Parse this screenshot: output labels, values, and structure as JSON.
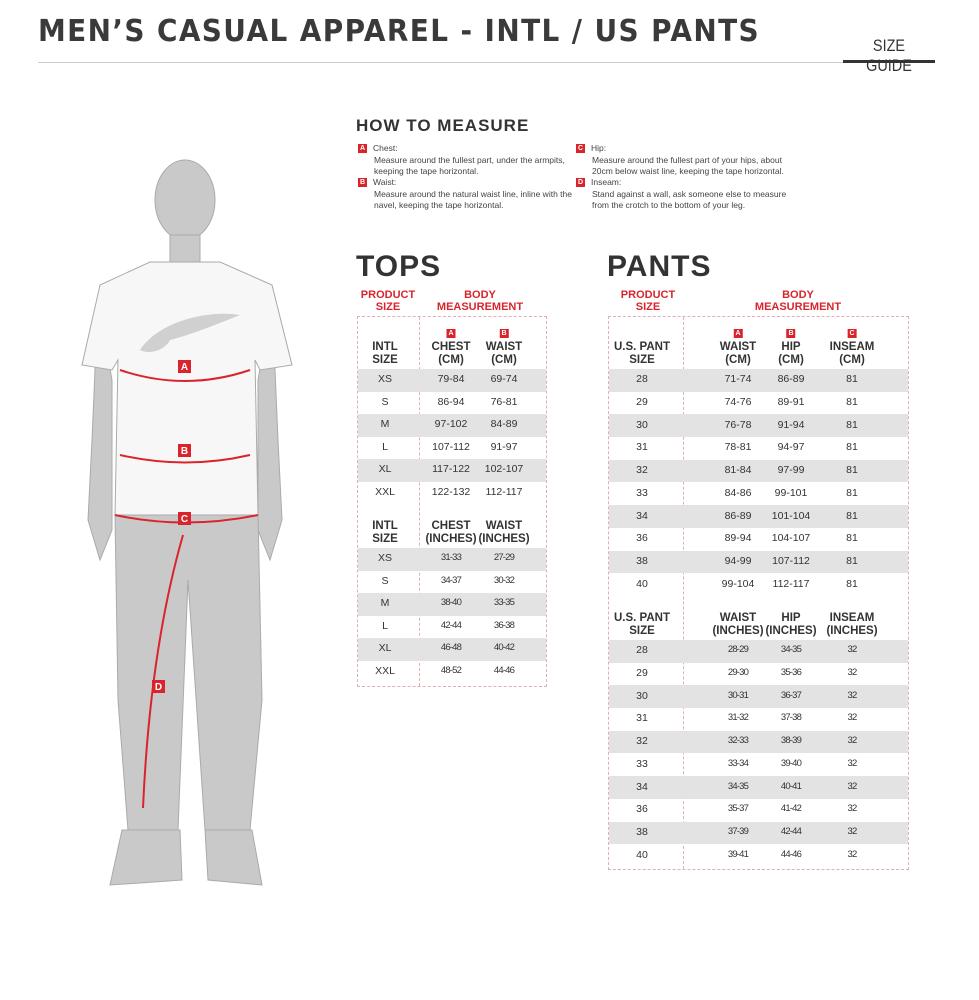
{
  "header": {
    "title": "MEN’S CASUAL APPAREL - INTL / US PANTS",
    "size_guide": "SIZE GUIDE"
  },
  "how_to_measure": {
    "title": "HOW TO MEASURE",
    "items": [
      {
        "badge": "A",
        "label": "Chest:",
        "text": "Measure around the fullest part, under the armpits, keeping the tape horizontal."
      },
      {
        "badge": "B",
        "label": "Waist:",
        "text": "Measure around the natural waist line, inline with the navel, keeping the tape horizontal."
      },
      {
        "badge": "C",
        "label": "Hip:",
        "text": "Measure around the fullest part of your hips, about 20cm below waist line, keeping the tape horizontal."
      },
      {
        "badge": "D",
        "label": "Inseam:",
        "text": "Stand against a wall, ask someone else to measure from the crotch to the bottom of your leg."
      }
    ]
  },
  "figure": {
    "labels": [
      "A",
      "B",
      "C",
      "D"
    ],
    "accent": "#d9242c"
  },
  "tops": {
    "title": "TOPS",
    "product_size": "PRODUCT SIZE",
    "body_measurement": "BODY MEASUREMENT",
    "sections": [
      {
        "headers": [
          {
            "badge": "",
            "label": "INTL SIZE"
          },
          {
            "badge": "A",
            "label": "CHEST (CM)"
          },
          {
            "badge": "B",
            "label": "WAIST (CM)"
          }
        ],
        "rows": [
          [
            "XS",
            "79-84",
            "69-74"
          ],
          [
            "S",
            "86-94",
            "76-81"
          ],
          [
            "M",
            "97-102",
            "84-89"
          ],
          [
            "L",
            "107-112",
            "91-97"
          ],
          [
            "XL",
            "117-122",
            "102-107"
          ],
          [
            "XXL",
            "122-132",
            "112-117"
          ]
        ]
      },
      {
        "headers": [
          {
            "badge": "",
            "label": "INTL SIZE"
          },
          {
            "badge": "",
            "label": "CHEST (INCHES)"
          },
          {
            "badge": "",
            "label": "WAIST (INCHES)"
          }
        ],
        "rows": [
          [
            "XS",
            "31-33",
            "27-29"
          ],
          [
            "S",
            "34-37",
            "30-32"
          ],
          [
            "M",
            "38-40",
            "33-35"
          ],
          [
            "L",
            "42-44",
            "36-38"
          ],
          [
            "XL",
            "46-48",
            "40-42"
          ],
          [
            "XXL",
            "48-52",
            "44-46"
          ]
        ]
      }
    ]
  },
  "pants": {
    "title": "PANTS",
    "product_size": "PRODUCT SIZE",
    "body_measurement": "BODY MEASUREMENT",
    "sections": [
      {
        "headers": [
          {
            "badge": "",
            "label": "U.S. PANT SIZE"
          },
          {
            "badge": "A",
            "label": "WAIST (CM)"
          },
          {
            "badge": "B",
            "label": "HIP (CM)"
          },
          {
            "badge": "C",
            "label": "INSEAM (CM)"
          }
        ],
        "rows": [
          [
            "28",
            "71-74",
            "86-89",
            "81"
          ],
          [
            "29",
            "74-76",
            "89-91",
            "81"
          ],
          [
            "30",
            "76-78",
            "91-94",
            "81"
          ],
          [
            "31",
            "78-81",
            "94-97",
            "81"
          ],
          [
            "32",
            "81-84",
            "97-99",
            "81"
          ],
          [
            "33",
            "84-86",
            "99-101",
            "81"
          ],
          [
            "34",
            "86-89",
            "101-104",
            "81"
          ],
          [
            "36",
            "89-94",
            "104-107",
            "81"
          ],
          [
            "38",
            "94-99",
            "107-112",
            "81"
          ],
          [
            "40",
            "99-104",
            "112-117",
            "81"
          ]
        ]
      },
      {
        "headers": [
          {
            "badge": "",
            "label": "U.S. PANT SIZE"
          },
          {
            "badge": "",
            "label": "WAIST (INCHES)"
          },
          {
            "badge": "",
            "label": "HIP (INCHES)"
          },
          {
            "badge": "",
            "label": "INSEAM (INCHES)"
          }
        ],
        "rows": [
          [
            "28",
            "28-29",
            "34-35",
            "32"
          ],
          [
            "29",
            "29-30",
            "35-36",
            "32"
          ],
          [
            "30",
            "30-31",
            "36-37",
            "32"
          ],
          [
            "31",
            "31-32",
            "37-38",
            "32"
          ],
          [
            "32",
            "32-33",
            "38-39",
            "32"
          ],
          [
            "33",
            "33-34",
            "39-40",
            "32"
          ],
          [
            "34",
            "34-35",
            "40-41",
            "32"
          ],
          [
            "36",
            "35-37",
            "41-42",
            "32"
          ],
          [
            "38",
            "37-39",
            "42-44",
            "32"
          ],
          [
            "40",
            "39-41",
            "44-46",
            "32"
          ]
        ]
      }
    ]
  }
}
